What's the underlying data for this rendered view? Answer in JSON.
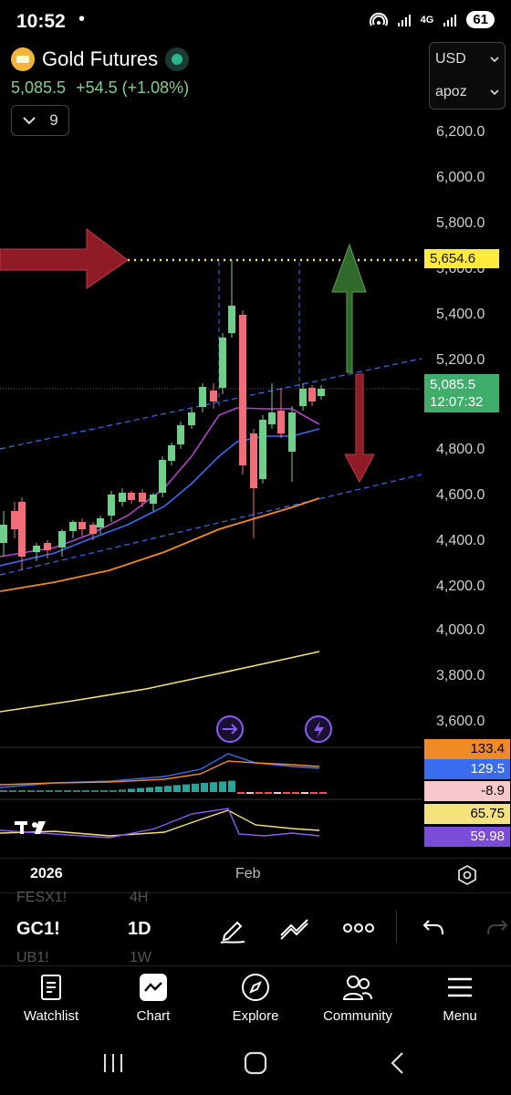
{
  "status_bar": {
    "time": "10:52",
    "dot": "•",
    "network": "4G",
    "battery": "61"
  },
  "header": {
    "title": "Gold Futures",
    "price": "5,085.5",
    "change": "+54.5",
    "change_pct": "(+1.08%)",
    "indicator_count": "9",
    "currency": "USD",
    "account": "apoz"
  },
  "price_axis": {
    "ticks": [
      "6,200.0",
      "6,000.0",
      "5,800.0",
      "5,600.0",
      "5,400.0",
      "5,200.0",
      "4,800.0",
      "4,600.0",
      "4,400.0",
      "4,200.0",
      "4,000.0",
      "3,800.0",
      "3,600.0"
    ],
    "highlight_label": "5,654.6",
    "last_price": "5,085.5",
    "countdown": "12:07:32"
  },
  "indicators": {
    "macd_top": "133.4",
    "macd_value": "129.5",
    "macd_hist": "-8.9",
    "rsi_a": "65.75",
    "rsi_b": "59.98"
  },
  "time_axis": {
    "labels": [
      "2026",
      "Feb"
    ]
  },
  "toolbar": {
    "symbol_prev": "FESX1!",
    "symbol": "GC1!",
    "symbol_next": "UB1!",
    "interval_prev": "4H",
    "interval": "1D",
    "interval_next": "1W"
  },
  "nav": {
    "watchlist": "Watchlist",
    "chart": "Chart",
    "explore": "Explore",
    "community": "Community",
    "menu": "Menu"
  },
  "colors": {
    "up": "#6fd08c",
    "down": "#f26d78",
    "highlight": "#ffeb3b",
    "arrow_red": "#8e1b26",
    "arrow_green": "#2f6a2a",
    "ma_orange": "#f08a24",
    "ma_blue": "#3a6cf0",
    "ma_purple": "#b044c8",
    "ma_yellow": "#f4e27a"
  }
}
